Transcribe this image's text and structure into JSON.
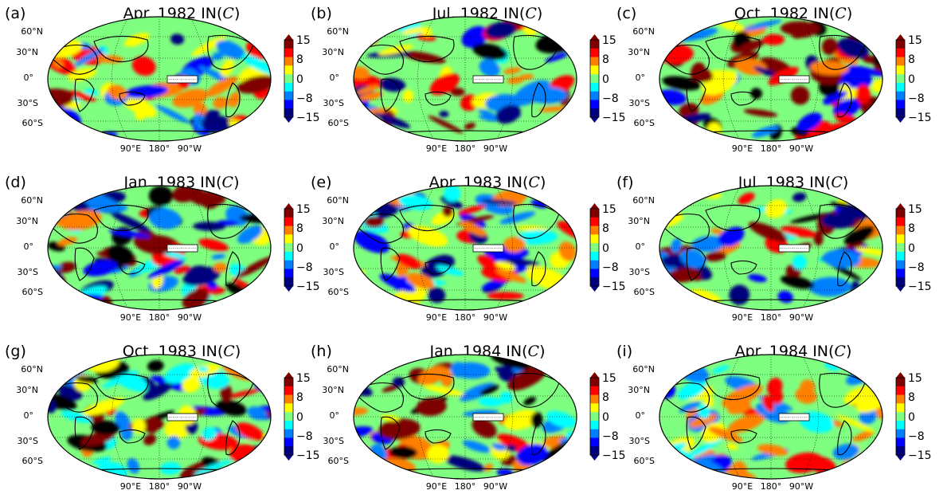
{
  "figure": {
    "panels": [
      {
        "label": "(a)",
        "title": "Apr. 1982 IN(",
        "title_var": "C",
        "title_close": ")",
        "seed": 11,
        "intensity": 0.85
      },
      {
        "label": "(b)",
        "title": "Jul. 1982 IN(",
        "title_var": "C",
        "title_close": ")",
        "seed": 23,
        "intensity": 1.0
      },
      {
        "label": "(c)",
        "title": "Oct. 1982 IN(",
        "title_var": "C",
        "title_close": ")",
        "seed": 37,
        "intensity": 1.25
      },
      {
        "label": "(d)",
        "title": "Jan. 1983 IN(",
        "title_var": "C",
        "title_close": ")",
        "seed": 41,
        "intensity": 1.15
      },
      {
        "label": "(e)",
        "title": "Apr. 1983 IN(",
        "title_var": "C",
        "title_close": ")",
        "seed": 53,
        "intensity": 0.9
      },
      {
        "label": "(f)",
        "title": "Jul. 1983 IN(",
        "title_var": "C",
        "title_close": ")",
        "seed": 67,
        "intensity": 1.1
      },
      {
        "label": "(g)",
        "title": "Oct. 1983 IN(",
        "title_var": "C",
        "title_close": ")",
        "seed": 71,
        "intensity": 1.2
      },
      {
        "label": "(h)",
        "title": "Jan. 1984 IN(",
        "title_var": "C",
        "title_close": ")",
        "seed": 83,
        "intensity": 1.15
      },
      {
        "label": "(i)",
        "title": "Apr. 1984 IN(",
        "title_var": "C",
        "title_close": ")",
        "seed": 97,
        "intensity": 0.6
      }
    ],
    "lat_labels": [
      "60°N",
      "30°N",
      "0°",
      "30°S",
      "60°S"
    ],
    "lon_labels": [
      "90°E",
      "180°",
      "90°W"
    ],
    "colorbar": {
      "ticks": [
        "15",
        "8",
        "0",
        "−8",
        "−15"
      ],
      "colors": [
        "#00007f",
        "#0000ff",
        "#0080ff",
        "#00ffff",
        "#80ff80",
        "#ffff00",
        "#ff8000",
        "#ff0000",
        "#7f0000"
      ]
    }
  },
  "chart_data": {
    "type": "heatmap",
    "projection": "Robinson world map, Pacific-centered",
    "value_range": [
      -15,
      15
    ],
    "colormap": "jet",
    "colorbar_ticks": [
      15,
      8,
      0,
      -8,
      -15
    ],
    "panels": [
      "Apr. 1982",
      "Jul. 1982",
      "Oct. 1982",
      "Jan. 1983",
      "Apr. 1983",
      "Jul. 1983",
      "Oct. 1983",
      "Jan. 1984",
      "Apr. 1984"
    ]
  }
}
